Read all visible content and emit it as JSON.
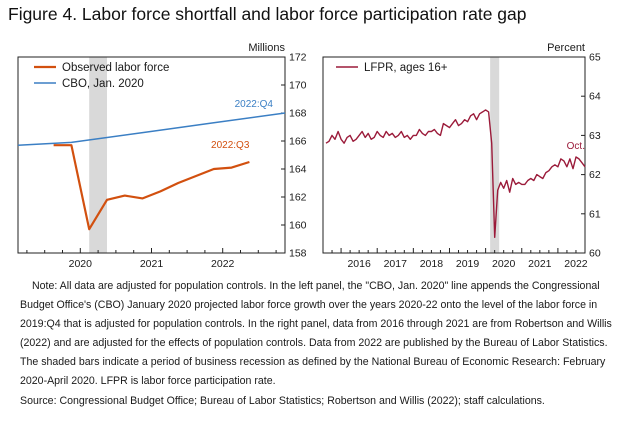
{
  "figure": {
    "title": "Figure 4. Labor force shortfall and labor force participation rate gap",
    "notes": [
      "Note: All data are adjusted for population controls. In the left panel, the \"CBO, Jan. 2020\" line appends the Congressional Budget Office's (CBO) January 2020 projected labor force growth over the years 2020-22 onto the level of the labor force in 2019:Q4 that is adjusted for population controls. In the right panel, data from 2016 through 2021 are from Robertson and Willis (2022) and are adjusted for the effects of population controls. Data from 2022 are published by the Bureau of Labor Statistics. The shaded bars indicate a period of business recession as defined by the National Bureau of Economic Research: February 2020-April 2020. LFPR is labor force participation rate.",
      "Source: Congressional Budget Office; Bureau of Labor Statistics; Robertson and Willis (2022); staff calculations."
    ]
  },
  "chart_data": [
    {
      "type": "line",
      "unit_label": "Millions",
      "ylim": [
        158,
        172
      ],
      "yticks": [
        158,
        160,
        162,
        164,
        166,
        168,
        170,
        172
      ],
      "xlim": [
        2019.125,
        2022.875
      ],
      "xtick_labels": [
        "2020",
        "2021",
        "2022"
      ],
      "xtick_label_positions": [
        2020.0,
        2021.0,
        2022.0
      ],
      "recession_shading": [
        2020.125,
        2020.375
      ],
      "legend_placement": "top-left",
      "series": [
        {
          "name": "Observed labor force",
          "color": "#d2500f",
          "x": [
            2019.625,
            2019.875,
            2020.125,
            2020.375,
            2020.625,
            2020.875,
            2021.125,
            2021.375,
            2021.625,
            2021.875,
            2022.125,
            2022.375
          ],
          "y": [
            165.7,
            165.7,
            159.7,
            161.8,
            162.1,
            161.9,
            162.4,
            163.0,
            163.5,
            164.0,
            164.1,
            164.5
          ],
          "annotation": "2022:Q3"
        },
        {
          "name": "CBO, Jan. 2020",
          "color": "#3b7fc4",
          "x": [
            2019.125,
            2019.875,
            2020.875,
            2021.875,
            2022.875
          ],
          "y": [
            165.7,
            165.9,
            166.6,
            167.3,
            168.0
          ],
          "annotation": "2022:Q4"
        }
      ]
    },
    {
      "type": "line",
      "unit_label": "Percent",
      "ylim": [
        60,
        65
      ],
      "yticks": [
        60,
        61,
        62,
        63,
        64,
        65
      ],
      "xlim": [
        2015.5,
        2022.75
      ],
      "xtick_labels": [
        "2016",
        "2017",
        "2018",
        "2019",
        "2020",
        "2021",
        "2022"
      ],
      "xtick_label_positions": [
        2016.0,
        2017.0,
        2018.0,
        2019.0,
        2020.0,
        2021.0,
        2022.0
      ],
      "recession_shading": [
        2020.125,
        2020.375
      ],
      "legend_placement": "top-left",
      "series": [
        {
          "name": "LFPR, ages 16+",
          "color": "#9b1b3a",
          "annotation": "Oct.",
          "x": [
            2015.583,
            2015.667,
            2015.75,
            2015.833,
            2015.917,
            2016.0,
            2016.083,
            2016.167,
            2016.25,
            2016.333,
            2016.417,
            2016.5,
            2016.583,
            2016.667,
            2016.75,
            2016.833,
            2016.917,
            2017.0,
            2017.083,
            2017.167,
            2017.25,
            2017.333,
            2017.417,
            2017.5,
            2017.583,
            2017.667,
            2017.75,
            2017.833,
            2017.917,
            2018.0,
            2018.083,
            2018.167,
            2018.25,
            2018.333,
            2018.417,
            2018.5,
            2018.583,
            2018.667,
            2018.75,
            2018.833,
            2018.917,
            2019.0,
            2019.083,
            2019.167,
            2019.25,
            2019.333,
            2019.417,
            2019.5,
            2019.583,
            2019.667,
            2019.75,
            2019.833,
            2019.917,
            2020.0,
            2020.083,
            2020.167,
            2020.25,
            2020.333,
            2020.417,
            2020.5,
            2020.583,
            2020.667,
            2020.75,
            2020.833,
            2020.917,
            2021.0,
            2021.083,
            2021.167,
            2021.25,
            2021.333,
            2021.417,
            2021.5,
            2021.583,
            2021.667,
            2021.75,
            2021.833,
            2021.917,
            2022.0,
            2022.083,
            2022.167,
            2022.25,
            2022.333,
            2022.417,
            2022.5,
            2022.583,
            2022.667,
            2022.75
          ],
          "y": [
            62.8,
            62.85,
            63.0,
            62.9,
            63.1,
            62.9,
            62.8,
            62.95,
            63.0,
            62.85,
            62.9,
            63.0,
            63.1,
            62.95,
            63.05,
            62.9,
            62.95,
            63.1,
            63.0,
            62.95,
            63.1,
            63.0,
            63.05,
            62.95,
            63.0,
            63.1,
            62.95,
            63.0,
            62.9,
            63.0,
            63.0,
            63.15,
            63.05,
            63.0,
            63.1,
            63.1,
            63.15,
            63.05,
            63.0,
            63.3,
            63.25,
            63.2,
            63.3,
            63.4,
            63.25,
            63.3,
            63.4,
            63.35,
            63.5,
            63.55,
            63.4,
            63.55,
            63.6,
            63.65,
            63.6,
            62.8,
            60.4,
            61.6,
            61.8,
            61.65,
            61.85,
            61.55,
            61.9,
            61.75,
            61.8,
            61.75,
            61.75,
            61.85,
            61.9,
            61.85,
            62.0,
            61.95,
            61.9,
            62.05,
            62.1,
            62.2,
            62.25,
            62.2,
            62.4,
            62.35,
            62.2,
            62.4,
            62.15,
            62.45,
            62.4,
            62.3,
            62.2
          ]
        }
      ]
    }
  ]
}
